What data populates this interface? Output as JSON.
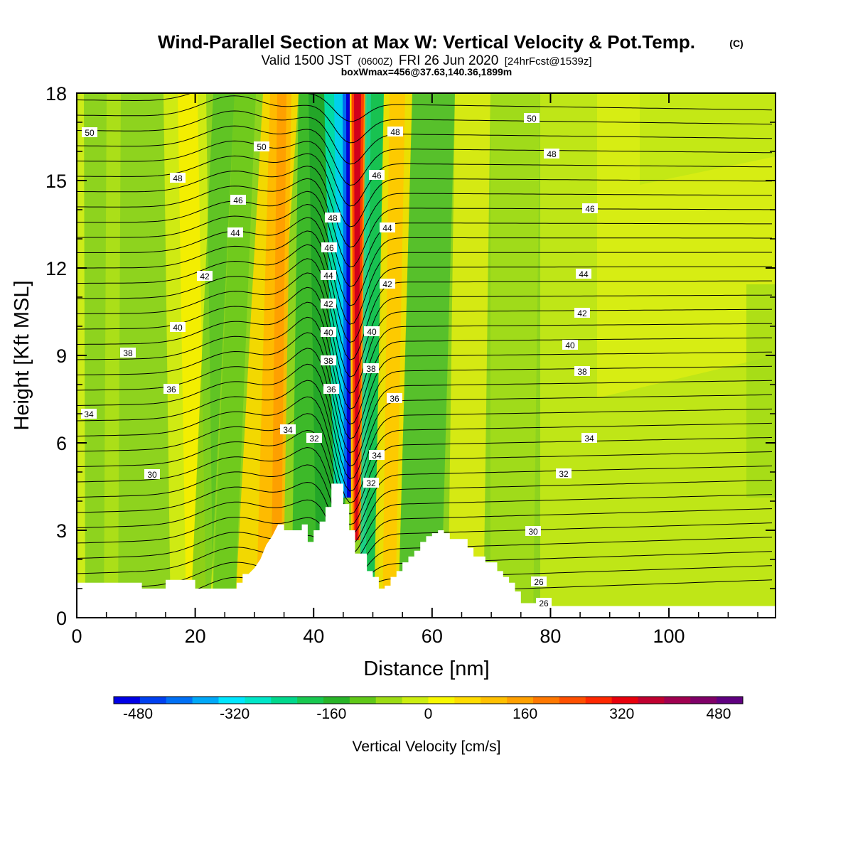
{
  "chart_data": {
    "type": "heatmap",
    "title": "Wind-Parallel Section at Max W: Vertical Velocity & Pot.Temp.",
    "title_mark": "(C)",
    "subtitle_main": "Valid 1500 JST",
    "subtitle_zulu": "(0600Z)",
    "subtitle_date": "FRI 26 Jun 2020",
    "subtitle_fcst": "[24hrFcst@1539z]",
    "box_info": "boxWmax=456@37.63,140.36,1899m",
    "xlabel": "Distance [nm]",
    "ylabel": "Height [Kft MSL]",
    "xlim": [
      0,
      118
    ],
    "ylim": [
      0,
      18
    ],
    "x_ticks": [
      "0",
      "20",
      "40",
      "60",
      "80",
      "100"
    ],
    "y_ticks": [
      "0",
      "3",
      "6",
      "9",
      "12",
      "15",
      "18"
    ],
    "colorbar": {
      "label": "Vertical Velocity [cm/s]",
      "range": [
        -520,
        520
      ],
      "tick_labels": [
        "-480",
        "-320",
        "-160",
        "0",
        "160",
        "320",
        "480"
      ],
      "colors": [
        "#0000e6",
        "#0040f0",
        "#0070f5",
        "#00a8f8",
        "#00e6ff",
        "#00e6c8",
        "#00d88c",
        "#18c850",
        "#28b428",
        "#60c818",
        "#9cdc14",
        "#ccee10",
        "#f8f800",
        "#ffdc00",
        "#ffc000",
        "#ffa000",
        "#ff7800",
        "#ff5000",
        "#ff2800",
        "#e8000c",
        "#c00030",
        "#a00050",
        "#800068",
        "#600080"
      ]
    },
    "theta_contour_labels": [
      "26",
      "26",
      "30",
      "30",
      "32",
      "32",
      "32",
      "34",
      "34",
      "34",
      "34",
      "36",
      "36",
      "36",
      "38",
      "38",
      "38",
      "38",
      "40",
      "40",
      "40",
      "40",
      "42",
      "42",
      "42",
      "42",
      "44",
      "44",
      "44",
      "44",
      "46",
      "46",
      "46",
      "46",
      "48",
      "48",
      "48",
      "48",
      "50",
      "50",
      "50"
    ]
  }
}
